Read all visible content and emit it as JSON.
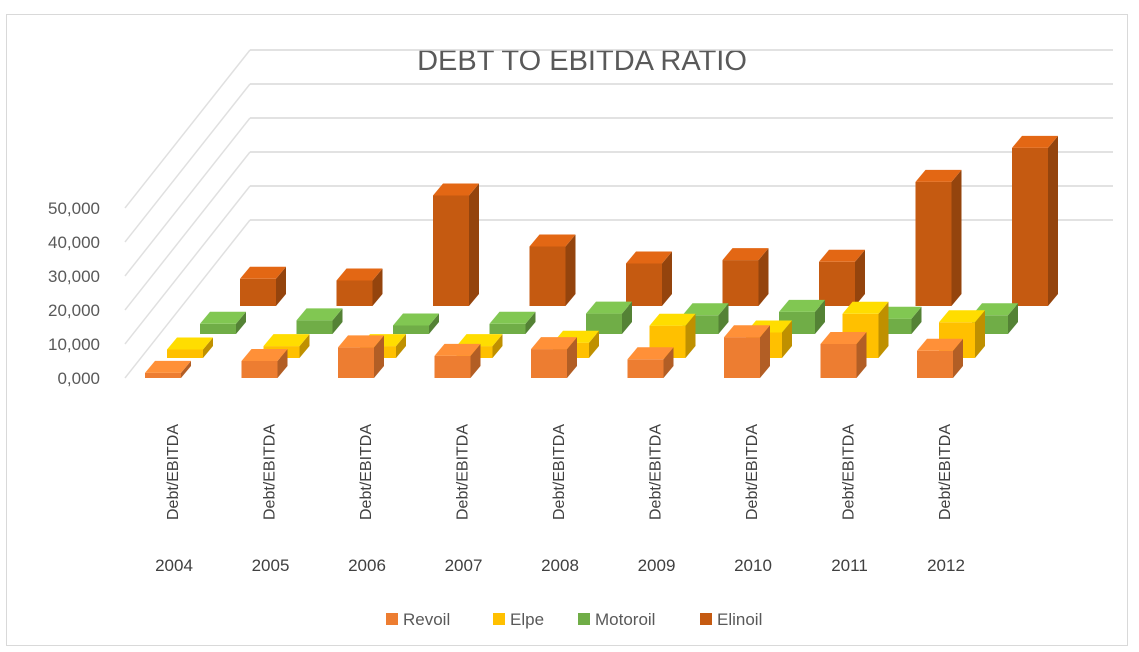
{
  "chart_data": {
    "type": "bar",
    "title": "DEBT TO EBITDA RATIO",
    "categories": [
      "2004",
      "2005",
      "2006",
      "2007",
      "2008",
      "2009",
      "2010",
      "2011",
      "2012"
    ],
    "category_label": "Debt/EBITDA",
    "y_tick_labels": [
      "0,000",
      "10,000",
      "20,000",
      "30,000",
      "40,000",
      "50,000"
    ],
    "ylim": [
      0,
      50
    ],
    "series": [
      {
        "name": "Revoil",
        "color": "#ED7D31",
        "values": [
          1.5,
          5,
          9,
          6.5,
          8.5,
          5.5,
          12,
          10,
          8
        ]
      },
      {
        "name": "Elpe",
        "color": "#FFC000",
        "values": [
          2.5,
          3.5,
          3.5,
          3.5,
          4.5,
          9.5,
          7.5,
          13,
          10.5
        ]
      },
      {
        "name": "Motoroil",
        "color": "#70AD47",
        "values": [
          3,
          4,
          2.5,
          3,
          6,
          5.5,
          6.5,
          4.5,
          5.5
        ]
      },
      {
        "name": "Elinoil",
        "color": "#C55A11",
        "values": [
          8,
          7.5,
          32.5,
          17.5,
          12.5,
          13.5,
          13,
          36.5,
          46.5
        ]
      }
    ],
    "legend_position": "bottom",
    "grid": true
  }
}
